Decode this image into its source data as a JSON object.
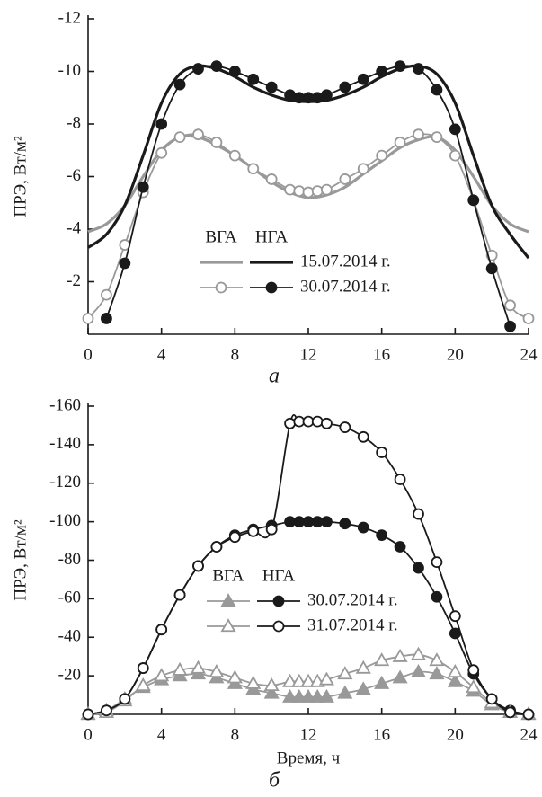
{
  "chart_data": [
    {
      "type": "line",
      "panel_label": "а",
      "y_label": "ПРЭ, Вт/м²",
      "xlim": [
        0,
        24
      ],
      "xticks": [
        0,
        4,
        8,
        12,
        16,
        20,
        24
      ],
      "ylim": [
        0,
        -12
      ],
      "yticks": [
        -12,
        -10,
        -8,
        -6,
        -4,
        -2
      ],
      "series": [
        {
          "group": "ВГА",
          "name": "15.07.2014 г.",
          "color": "#999999",
          "x": [
            0,
            1,
            2,
            3,
            4,
            5,
            6,
            7,
            8,
            9,
            10,
            11,
            12,
            13,
            14,
            15,
            16,
            17,
            18,
            19,
            20,
            21,
            22,
            23,
            24
          ],
          "values": [
            -3.9,
            -4.2,
            -4.9,
            -6.0,
            -7.0,
            -7.5,
            -7.5,
            -7.2,
            -6.8,
            -6.3,
            -5.8,
            -5.4,
            -5.2,
            -5.3,
            -5.6,
            -6.1,
            -6.6,
            -7.1,
            -7.4,
            -7.5,
            -7.0,
            -6.0,
            -4.9,
            -4.2,
            -3.9
          ]
        },
        {
          "group": "НГА",
          "name": "15.07.2014 г.",
          "color": "#1a1a1a",
          "x": [
            0,
            1,
            2,
            3,
            4,
            5,
            6,
            7,
            8,
            9,
            10,
            11,
            12,
            13,
            14,
            15,
            16,
            17,
            18,
            19,
            20,
            21,
            22,
            23,
            24
          ],
          "values": [
            -3.3,
            -3.8,
            -4.9,
            -6.8,
            -8.8,
            -9.9,
            -10.2,
            -10.1,
            -9.8,
            -9.4,
            -9.1,
            -8.9,
            -8.85,
            -8.9,
            -9.1,
            -9.4,
            -9.8,
            -10.1,
            -10.2,
            -9.9,
            -8.8,
            -6.8,
            -4.9,
            -3.8,
            -2.9
          ]
        },
        {
          "group": "ВГА",
          "name": "30.07.2014 г.",
          "color": "#999999",
          "marker": "open-circle",
          "x": [
            0,
            1,
            2,
            3,
            4,
            5,
            6,
            7,
            8,
            9,
            10,
            11,
            11.5,
            12,
            12.5,
            13,
            14,
            15,
            16,
            17,
            18,
            19,
            20,
            21,
            22,
            23,
            24
          ],
          "values": [
            -0.6,
            -1.5,
            -3.4,
            -5.4,
            -6.9,
            -7.5,
            -7.6,
            -7.3,
            -6.8,
            -6.3,
            -5.9,
            -5.5,
            -5.45,
            -5.4,
            -5.45,
            -5.5,
            -5.9,
            -6.3,
            -6.8,
            -7.3,
            -7.6,
            -7.5,
            -6.8,
            -5.1,
            -3.0,
            -1.1,
            -0.6
          ]
        },
        {
          "group": "НГА",
          "name": "30.07.2014 г.",
          "color": "#1a1a1a",
          "marker": "filled-circle",
          "x": [
            1,
            2,
            3,
            4,
            5,
            6,
            7,
            8,
            9,
            10,
            11,
            11.5,
            12,
            12.5,
            13,
            14,
            15,
            16,
            17,
            18,
            19,
            20,
            21,
            22,
            23
          ],
          "values": [
            -0.6,
            -2.7,
            -5.6,
            -8.0,
            -9.5,
            -10.1,
            -10.2,
            -10.0,
            -9.7,
            -9.4,
            -9.1,
            -9.0,
            -9.0,
            -9.0,
            -9.1,
            -9.4,
            -9.7,
            -10.0,
            -10.2,
            -10.1,
            -9.3,
            -7.8,
            -5.1,
            -2.5,
            -0.3
          ]
        }
      ]
    },
    {
      "type": "line",
      "panel_label": "б",
      "y_label": "ПРЭ, Вт/м²",
      "x_label": "Время, ч",
      "xlim": [
        0,
        24
      ],
      "xticks": [
        0,
        4,
        8,
        12,
        16,
        20,
        24
      ],
      "ylim": [
        0,
        -160
      ],
      "yticks": [
        -160,
        -140,
        -120,
        -100,
        -80,
        -60,
        -40,
        -20
      ],
      "series": [
        {
          "group": "ВГА",
          "name": "30.07.2014 г.",
          "color": "#999999",
          "marker": "filled-triangle",
          "x": [
            0,
            1,
            2,
            3,
            4,
            5,
            6,
            7,
            8,
            9,
            10,
            11,
            11.5,
            12,
            12.5,
            13,
            14,
            15,
            16,
            17,
            18,
            19,
            20,
            21,
            22,
            23,
            24
          ],
          "values": [
            0,
            -2,
            -8,
            -14,
            -18,
            -20,
            -21,
            -19,
            -16,
            -13,
            -11,
            -9,
            -9,
            -9,
            -9,
            -9,
            -11,
            -13,
            -16,
            -19,
            -22,
            -21,
            -17,
            -12,
            -5,
            -1,
            0
          ]
        },
        {
          "group": "НГА",
          "name": "30.07.2014 г.",
          "color": "#1a1a1a",
          "marker": "filled-circle",
          "x": [
            0,
            1,
            2,
            3,
            4,
            5,
            6,
            7,
            8,
            9,
            10,
            11,
            11.5,
            12,
            12.5,
            13,
            14,
            15,
            16,
            17,
            18,
            19,
            20,
            21,
            22,
            23,
            24
          ],
          "values": [
            0,
            -2,
            -8,
            -24,
            -44,
            -62,
            -77,
            -87,
            -93,
            -96,
            -98,
            -100,
            -100,
            -100,
            -100,
            -100,
            -99,
            -97,
            -93,
            -87,
            -76,
            -61,
            -42,
            -21,
            -8,
            -2,
            0
          ]
        },
        {
          "group": "ВГА",
          "name": "31.07.2014 г.",
          "color": "#999999",
          "marker": "open-triangle",
          "x": [
            0,
            1,
            2,
            3,
            4,
            5,
            6,
            7,
            8,
            9,
            10,
            11,
            11.5,
            12,
            12.5,
            13,
            14,
            15,
            16,
            17,
            18,
            19,
            20,
            21,
            22,
            23,
            24
          ],
          "values": [
            0,
            -1,
            -7,
            -15,
            -20,
            -23,
            -24,
            -22,
            -19,
            -16,
            -15,
            -17,
            -17,
            -17,
            -17,
            -18,
            -21,
            -24,
            -28,
            -30,
            -31,
            -28,
            -22,
            -14,
            -6,
            -1,
            0
          ]
        },
        {
          "group": "НГА",
          "name": "31.07.2014 г.",
          "color": "#1a1a1a",
          "marker": "open-circle",
          "x": [
            0,
            1,
            2,
            3,
            4,
            5,
            6,
            7,
            8,
            9,
            10,
            11,
            11.5,
            12,
            12.5,
            13,
            14,
            15,
            16,
            17,
            18,
            19,
            20,
            21,
            22,
            23,
            24
          ],
          "values": [
            0,
            -2,
            -8,
            -24,
            -44,
            -62,
            -77,
            -87,
            -92,
            -95,
            -96,
            -151,
            -152,
            -152,
            -152,
            -151,
            -149,
            -144,
            -136,
            -122,
            -104,
            -79,
            -51,
            -23,
            -8,
            -1,
            0
          ]
        }
      ]
    }
  ]
}
